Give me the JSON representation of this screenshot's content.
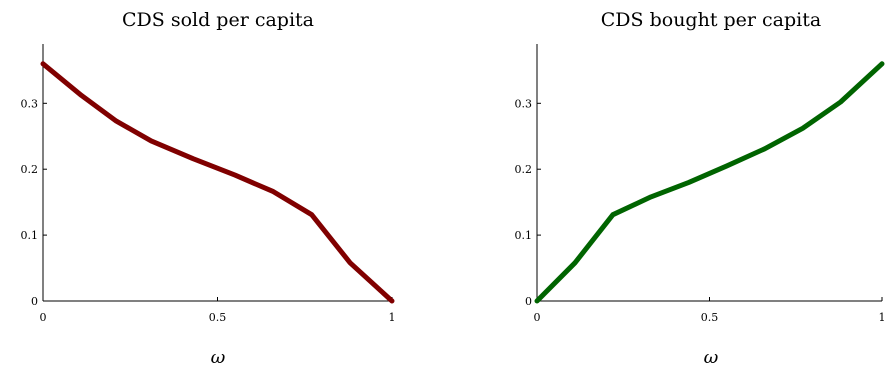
{
  "chart_data": [
    {
      "type": "line",
      "title": "CDS sold per capita",
      "xlabel": "ω",
      "ylabel": "",
      "xlim": [
        0,
        1
      ],
      "ylim": [
        0,
        0.39
      ],
      "xticks": [
        "0",
        "0.5",
        "1"
      ],
      "yticks": [
        "0",
        "0.1",
        "0.2",
        "0.3"
      ],
      "grid": false,
      "color": "#800000",
      "series": [
        {
          "x": [
            0,
            0.11,
            0.21,
            0.31,
            0.43,
            0.55,
            0.66,
            0.77,
            0.88,
            1.0
          ],
          "values": [
            0.36,
            0.312,
            0.273,
            0.243,
            0.216,
            0.191,
            0.166,
            0.131,
            0.058,
            0.0
          ]
        }
      ]
    },
    {
      "type": "line",
      "title": "CDS bought per capita",
      "xlabel": "ω",
      "ylabel": "",
      "xlim": [
        0,
        1
      ],
      "ylim": [
        0,
        0.39
      ],
      "xticks": [
        "0",
        "0.5",
        "1"
      ],
      "yticks": [
        "0",
        "0.1",
        "0.2",
        "0.3"
      ],
      "grid": false,
      "color": "#006400",
      "series": [
        {
          "x": [
            0,
            0.11,
            0.22,
            0.33,
            0.44,
            0.55,
            0.66,
            0.77,
            0.88,
            1.0
          ],
          "values": [
            0.0,
            0.058,
            0.131,
            0.158,
            0.18,
            0.205,
            0.231,
            0.262,
            0.302,
            0.36
          ]
        }
      ]
    }
  ]
}
